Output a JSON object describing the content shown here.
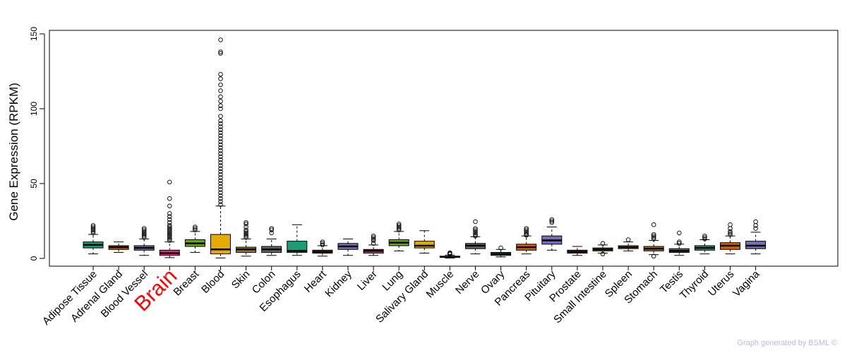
{
  "chart_data": {
    "type": "boxplot",
    "title": "",
    "xlabel": "",
    "ylabel": "Gene Expression (RPKM)",
    "ylim": [
      0,
      150
    ],
    "yticks": [
      0,
      50,
      100,
      150
    ],
    "grid": false,
    "highlight_category": "Brain",
    "highlight_color": "#ff0000",
    "categories": [
      "Adipose Tissue",
      "Adrenal Gland",
      "Blood Vessel",
      "Brain",
      "Breast",
      "Blood",
      "Skin",
      "Colon",
      "Esophagus",
      "Heart",
      "Kidney",
      "Liver",
      "Lung",
      "Salivary Gland",
      "Muscle",
      "Nerve",
      "Ovary",
      "Pancreas",
      "Pituitary",
      "Prostate",
      "Small Intestine",
      "Spleen",
      "Stomach",
      "Testis",
      "Thyroid",
      "Uterus",
      "Vagina"
    ],
    "boxes": [
      {
        "name": "Adipose Tissue",
        "color": "#1b9e77",
        "whisker_low": 3,
        "q1": 7,
        "median": 9,
        "q3": 11,
        "whisker_high": 16,
        "outliers": [
          17,
          18,
          19,
          20,
          21,
          22
        ]
      },
      {
        "name": "Adrenal Gland",
        "color": "#d95f02",
        "whisker_low": 4,
        "q1": 6,
        "median": 7.5,
        "q3": 8.5,
        "whisker_high": 11,
        "outliers": []
      },
      {
        "name": "Blood Vessel",
        "color": "#7570b3",
        "whisker_low": 2,
        "q1": 5.5,
        "median": 7,
        "q3": 8.5,
        "whisker_high": 13,
        "outliers": [
          14,
          15,
          16,
          17,
          18,
          19,
          20
        ]
      },
      {
        "name": "Brain",
        "color": "#e7298a",
        "whisker_low": 0.5,
        "q1": 2,
        "median": 3.5,
        "q3": 5.5,
        "whisker_high": 11,
        "outliers": [
          12,
          13,
          14,
          15,
          16,
          17,
          18,
          19,
          20,
          21,
          22,
          24,
          26,
          28,
          30,
          35,
          40,
          51
        ]
      },
      {
        "name": "Breast",
        "color": "#66a61e",
        "whisker_low": 4,
        "q1": 8,
        "median": 10,
        "q3": 12.5,
        "whisker_high": 18,
        "outliers": [
          19,
          20,
          21
        ]
      },
      {
        "name": "Blood",
        "color": "#e6ab02",
        "whisker_low": 0.3,
        "q1": 3,
        "median": 6,
        "q3": 16,
        "whisker_high": 35,
        "outliers": [
          36,
          38,
          40,
          42,
          44,
          46,
          48,
          50,
          52,
          54,
          56,
          58,
          60,
          62,
          64,
          66,
          68,
          70,
          72,
          74,
          76,
          78,
          80,
          82,
          84,
          86,
          88,
          90,
          92,
          95,
          100,
          102,
          105,
          108,
          112,
          116,
          120,
          123,
          137,
          138,
          146
        ]
      },
      {
        "name": "Skin",
        "color": "#a6761d",
        "whisker_low": 1.5,
        "q1": 4,
        "median": 6,
        "q3": 7.5,
        "whisker_high": 13,
        "outliers": [
          14,
          15,
          16,
          17,
          18,
          19,
          21,
          23,
          24
        ]
      },
      {
        "name": "Colon",
        "color": "#666666",
        "whisker_low": 2,
        "q1": 4,
        "median": 6,
        "q3": 8,
        "whisker_high": 13,
        "outliers": [
          17,
          19,
          20
        ]
      },
      {
        "name": "Esophagus",
        "color": "#1b9e77",
        "whisker_low": 2,
        "q1": 4,
        "median": 5,
        "q3": 11.5,
        "whisker_high": 22.5,
        "outliers": []
      },
      {
        "name": "Heart",
        "color": "#d95f02",
        "whisker_low": 1.5,
        "q1": 3.5,
        "median": 4.5,
        "q3": 5.5,
        "whisker_high": 8.5,
        "outliers": [
          9,
          10,
          11
        ]
      },
      {
        "name": "Kidney",
        "color": "#7570b3",
        "whisker_low": 2,
        "q1": 6,
        "median": 8,
        "q3": 10,
        "whisker_high": 13,
        "outliers": []
      },
      {
        "name": "Liver",
        "color": "#e7298a",
        "whisker_low": 2,
        "q1": 3.5,
        "median": 5,
        "q3": 6,
        "whisker_high": 9,
        "outliers": [
          10,
          12,
          13,
          14,
          15
        ]
      },
      {
        "name": "Lung",
        "color": "#66a61e",
        "whisker_low": 5,
        "q1": 8.5,
        "median": 10.5,
        "q3": 12.5,
        "whisker_high": 18,
        "outliers": [
          19,
          20,
          21,
          22,
          23
        ]
      },
      {
        "name": "Salivary Gland",
        "color": "#e6ab02",
        "whisker_low": 3.5,
        "q1": 7,
        "median": 8.5,
        "q3": 11.5,
        "whisker_high": 18.5,
        "outliers": []
      },
      {
        "name": "Muscle",
        "color": "#a6761d",
        "whisker_low": 0.2,
        "q1": 0.7,
        "median": 1,
        "q3": 1.5,
        "whisker_high": 2.2,
        "outliers": [
          2.8,
          3.3,
          3.8
        ]
      },
      {
        "name": "Nerve",
        "color": "#666666",
        "whisker_low": 3,
        "q1": 6.5,
        "median": 8.5,
        "q3": 10,
        "whisker_high": 14.5,
        "outliers": [
          15,
          16,
          17,
          18,
          19,
          20,
          24.5
        ]
      },
      {
        "name": "Ovary",
        "color": "#1b9e77",
        "whisker_low": 1,
        "q1": 2,
        "median": 3,
        "q3": 4,
        "whisker_high": 6,
        "outliers": [
          7
        ]
      },
      {
        "name": "Pancreas",
        "color": "#d95f02",
        "whisker_low": 3,
        "q1": 5.5,
        "median": 7.5,
        "q3": 9.5,
        "whisker_high": 15,
        "outliers": [
          15.5,
          16,
          17,
          18,
          19,
          20
        ]
      },
      {
        "name": "Pituitary",
        "color": "#7570b3",
        "whisker_low": 5.5,
        "q1": 9.5,
        "median": 12,
        "q3": 15,
        "whisker_high": 21,
        "outliers": [
          24,
          25,
          26
        ]
      },
      {
        "name": "Prostate",
        "color": "#e7298a",
        "whisker_low": 2,
        "q1": 3.5,
        "median": 4.5,
        "q3": 5.5,
        "whisker_high": 8,
        "outliers": []
      },
      {
        "name": "Small Intestine",
        "color": "#66a61e",
        "whisker_low": 3.5,
        "q1": 5,
        "median": 6,
        "q3": 7,
        "whisker_high": 9,
        "outliers": [
          3,
          10
        ]
      },
      {
        "name": "Spleen",
        "color": "#e6ab02",
        "whisker_low": 5,
        "q1": 6.5,
        "median": 7.5,
        "q3": 8.5,
        "whisker_high": 11,
        "outliers": [
          12.5
        ]
      },
      {
        "name": "Stomach",
        "color": "#a6761d",
        "whisker_low": 2.5,
        "q1": 5,
        "median": 6.5,
        "q3": 8,
        "whisker_high": 12,
        "outliers": [
          1.5,
          13,
          14,
          15,
          16,
          22.5
        ]
      },
      {
        "name": "Testis",
        "color": "#666666",
        "whisker_low": 2,
        "q1": 4,
        "median": 5,
        "q3": 6.5,
        "whisker_high": 9.5,
        "outliers": [
          10,
          11,
          17
        ]
      },
      {
        "name": "Thyroid",
        "color": "#1b9e77",
        "whisker_low": 3,
        "q1": 5.5,
        "median": 7,
        "q3": 8.5,
        "whisker_high": 12.5,
        "outliers": [
          13,
          14,
          15
        ]
      },
      {
        "name": "Uterus",
        "color": "#d95f02",
        "whisker_low": 3,
        "q1": 6,
        "median": 8.5,
        "q3": 10.5,
        "whisker_high": 15,
        "outliers": [
          16,
          17,
          18,
          20,
          22.5
        ]
      },
      {
        "name": "Vagina",
        "color": "#7570b3",
        "whisker_low": 3,
        "q1": 6.5,
        "median": 8.5,
        "q3": 11.5,
        "whisker_high": 17.5,
        "outliers": [
          20,
          22,
          24.5
        ]
      }
    ]
  },
  "footer": {
    "credit": "Graph generated by BSML ©"
  }
}
